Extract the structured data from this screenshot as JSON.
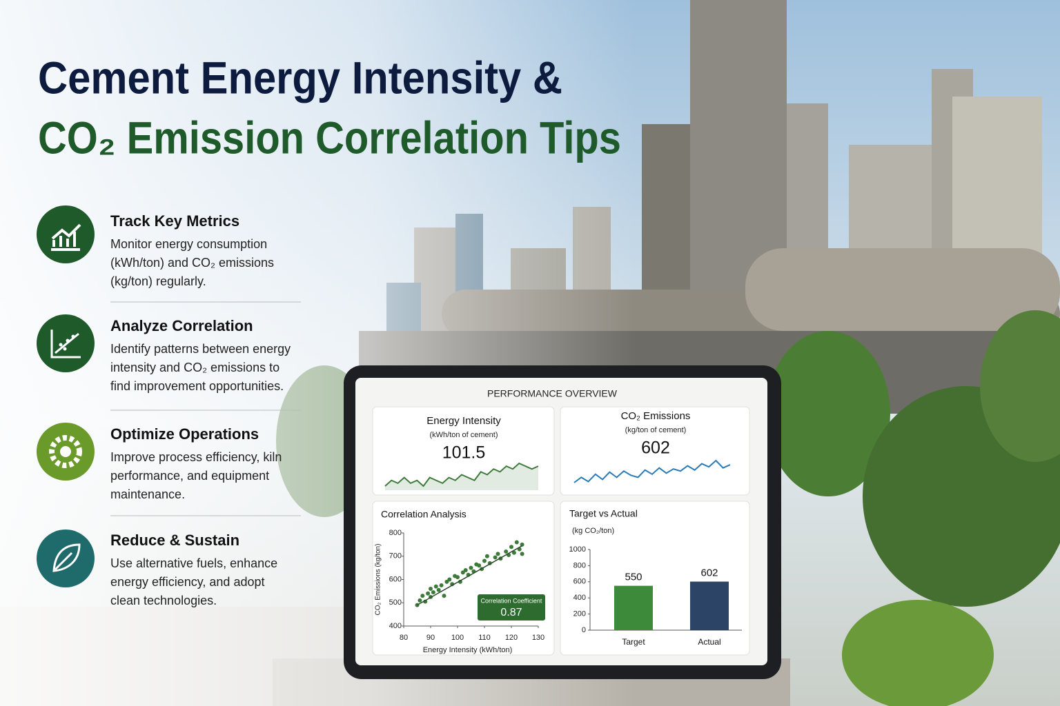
{
  "header": {
    "title_line1": "Cement Energy Intensity &",
    "title_line2": "CO₂ Emission Correlation Tips"
  },
  "tips": [
    {
      "title": "Track Key Metrics",
      "lines": [
        "Monitor energy consumption",
        "(kWh/ton) and CO₂ emissions",
        "(kg/ton) regularly."
      ]
    },
    {
      "title": "Analyze Correlation",
      "lines": [
        "Identify patterns between energy",
        "intensity and CO₂ emissions to",
        "find improvement opportunities."
      ]
    },
    {
      "title": "Optimize Operations",
      "lines": [
        "Improve process efficiency, kiln",
        "performance, and equipment",
        "maintenance."
      ]
    },
    {
      "title": "Reduce & Sustain",
      "lines": [
        "Use alternative fuels, enhance",
        "energy efficiency, and adopt",
        "clean technologies."
      ]
    }
  ],
  "dashboard": {
    "heading": "PERFORMANCE OVERVIEW"
  },
  "chart_data": [
    {
      "type": "line",
      "title": "Energy Intensity",
      "subtitle": "(kWh/ton of cement)",
      "headline": 101.5,
      "color": "#3d7a3a",
      "area": true,
      "values": [
        96,
        98,
        97,
        99,
        97,
        98,
        96,
        99,
        98,
        97,
        99,
        98,
        100,
        99,
        98,
        101,
        100,
        102,
        101,
        103,
        102,
        104,
        103,
        102,
        103
      ]
    },
    {
      "type": "line",
      "title": "CO₂ Emissions",
      "subtitle": "(kg/ton of cement)",
      "headline": 602,
      "color": "#2a7ab8",
      "area": false,
      "values": [
        585,
        590,
        586,
        593,
        588,
        595,
        590,
        596,
        592,
        590,
        597,
        593,
        599,
        594,
        598,
        596,
        601,
        597,
        603,
        600,
        606,
        599,
        602
      ]
    },
    {
      "type": "scatter",
      "title": "Correlation Analysis",
      "x_label": "Energy Intensity (kWh/ton)",
      "y_label": "CO₂ Emissions (kg/ton)",
      "color": "#3d7a3a",
      "x": [
        85,
        86,
        87,
        88,
        89,
        90,
        90,
        91,
        92,
        93,
        94,
        95,
        96,
        97,
        98,
        99,
        100,
        101,
        102,
        103,
        104,
        105,
        106,
        107,
        108,
        109,
        110,
        111,
        112,
        114,
        115,
        116,
        118,
        119,
        120,
        121,
        122,
        123,
        124,
        124
      ],
      "values": [
        490,
        510,
        530,
        505,
        540,
        560,
        525,
        545,
        570,
        555,
        575,
        530,
        590,
        600,
        580,
        615,
        610,
        590,
        630,
        640,
        620,
        650,
        635,
        665,
        660,
        645,
        680,
        700,
        670,
        695,
        710,
        690,
        720,
        705,
        740,
        715,
        760,
        730,
        750,
        710
      ],
      "trendline": {
        "x": [
          85,
          124
        ],
        "values": [
          490,
          745
        ]
      },
      "annotation": {
        "label": "Correlation Coefficient",
        "value": 0.87
      },
      "xlim": [
        80,
        130
      ],
      "ylim": [
        400,
        800
      ],
      "xticks": [
        80,
        90,
        100,
        110,
        120,
        130
      ],
      "yticks": [
        400,
        500,
        600,
        700,
        800
      ]
    },
    {
      "type": "bar",
      "title": "Target vs Actual",
      "subtitle": "(kg CO₂/ton)",
      "categories": [
        "Target",
        "Actual"
      ],
      "values": [
        550,
        602
      ],
      "colors": [
        "#3d8a3a",
        "#2c4466"
      ],
      "ylim": [
        0,
        1000
      ],
      "yticks": [
        0,
        200,
        400,
        600,
        800,
        1000
      ]
    }
  ]
}
